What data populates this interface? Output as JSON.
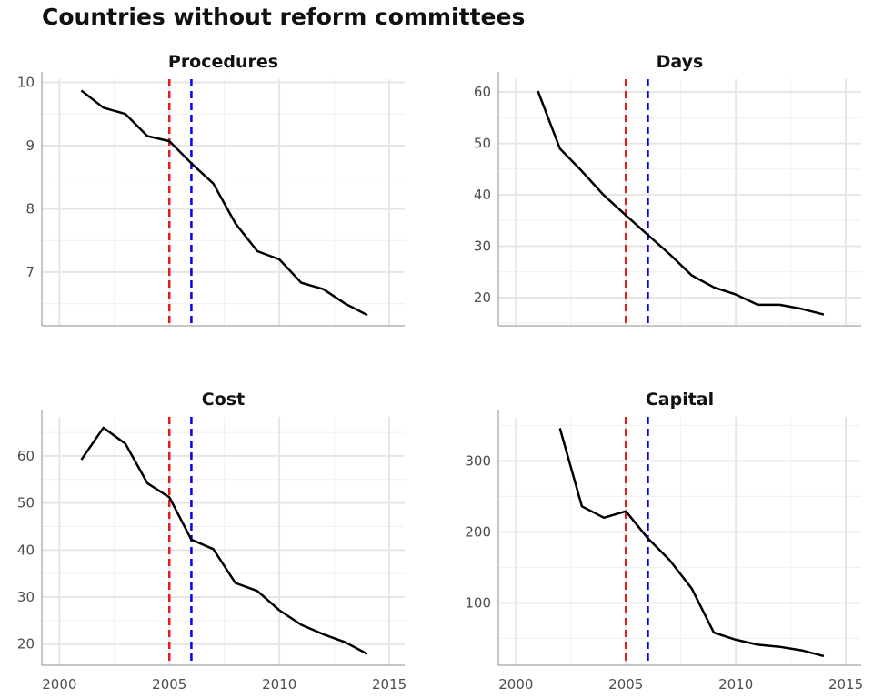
{
  "title": "Countries without reform committees",
  "style": {
    "line_color": "#000000",
    "vline_1_color": "#e41a1c",
    "vline_2_color": "#0000ee",
    "grid_major": "#e6e6e6",
    "grid_minor": "#f0f0f0",
    "axis_color": "#8c8c8c"
  },
  "chart_data": [
    {
      "type": "line",
      "title": "Procedures",
      "x": [
        2001,
        2002,
        2003,
        2004,
        2005,
        2006,
        2007,
        2008,
        2009,
        2010,
        2011,
        2012,
        2013,
        2014
      ],
      "series": [
        {
          "values": [
            9.87,
            9.6,
            9.5,
            9.15,
            9.07,
            8.72,
            8.4,
            7.77,
            7.33,
            7.2,
            6.83,
            6.73,
            6.5,
            6.32
          ]
        }
      ],
      "vlines": [
        2005,
        2006
      ],
      "xlim": [
        1999.2,
        2015.7
      ],
      "ylim": [
        6.15,
        10.05
      ],
      "xticks": [
        2000,
        2005,
        2010,
        2015
      ],
      "yticks": [
        7,
        8,
        9,
        10
      ],
      "show_x_tick_labels": false
    },
    {
      "type": "line",
      "title": "Days",
      "x": [
        2001,
        2002,
        2003,
        2004,
        2005,
        2006,
        2007,
        2008,
        2009,
        2010,
        2011,
        2012,
        2013,
        2014
      ],
      "series": [
        {
          "values": [
            60.2,
            49,
            44.6,
            39.9,
            36,
            32.2,
            28.4,
            24.3,
            22,
            20.6,
            18.6,
            18.6,
            17.8,
            16.7
          ]
        }
      ],
      "vlines": [
        2005,
        2006
      ],
      "xlim": [
        1999.2,
        2015.7
      ],
      "ylim": [
        14.5,
        62.5
      ],
      "xticks": [
        2000,
        2005,
        2010,
        2015
      ],
      "yticks": [
        20,
        30,
        40,
        50,
        60
      ],
      "show_x_tick_labels": false
    },
    {
      "type": "line",
      "title": "Cost",
      "x": [
        2001,
        2002,
        2003,
        2004,
        2005,
        2006,
        2007,
        2008,
        2009,
        2010,
        2011,
        2012,
        2013,
        2014
      ],
      "series": [
        {
          "values": [
            59.2,
            66,
            62.6,
            54.2,
            51.2,
            42.2,
            40.2,
            33,
            31.3,
            27.2,
            24.1,
            22.1,
            20.4,
            17.9
          ]
        }
      ],
      "vlines": [
        2005,
        2006
      ],
      "xlim": [
        1999.2,
        2015.7
      ],
      "ylim": [
        15.5,
        68.3
      ],
      "xticks": [
        2000,
        2005,
        2010,
        2015
      ],
      "yticks": [
        20,
        30,
        40,
        50,
        60
      ],
      "show_x_tick_labels": true
    },
    {
      "type": "line",
      "title": "Capital",
      "x": [
        2002,
        2003,
        2004,
        2005,
        2006,
        2007,
        2008,
        2009,
        2010,
        2011,
        2012,
        2013,
        2014
      ],
      "series": [
        {
          "values": [
            346,
            236,
            220,
            229,
            191,
            160,
            120,
            58,
            48,
            41,
            38,
            33,
            25
          ]
        }
      ],
      "vlines": [
        2005,
        2006
      ],
      "xlim": [
        1999.2,
        2015.7
      ],
      "ylim": [
        12,
        362
      ],
      "xticks": [
        2000,
        2005,
        2010,
        2015
      ],
      "yticks": [
        100,
        200,
        300
      ],
      "show_x_tick_labels": true
    }
  ]
}
